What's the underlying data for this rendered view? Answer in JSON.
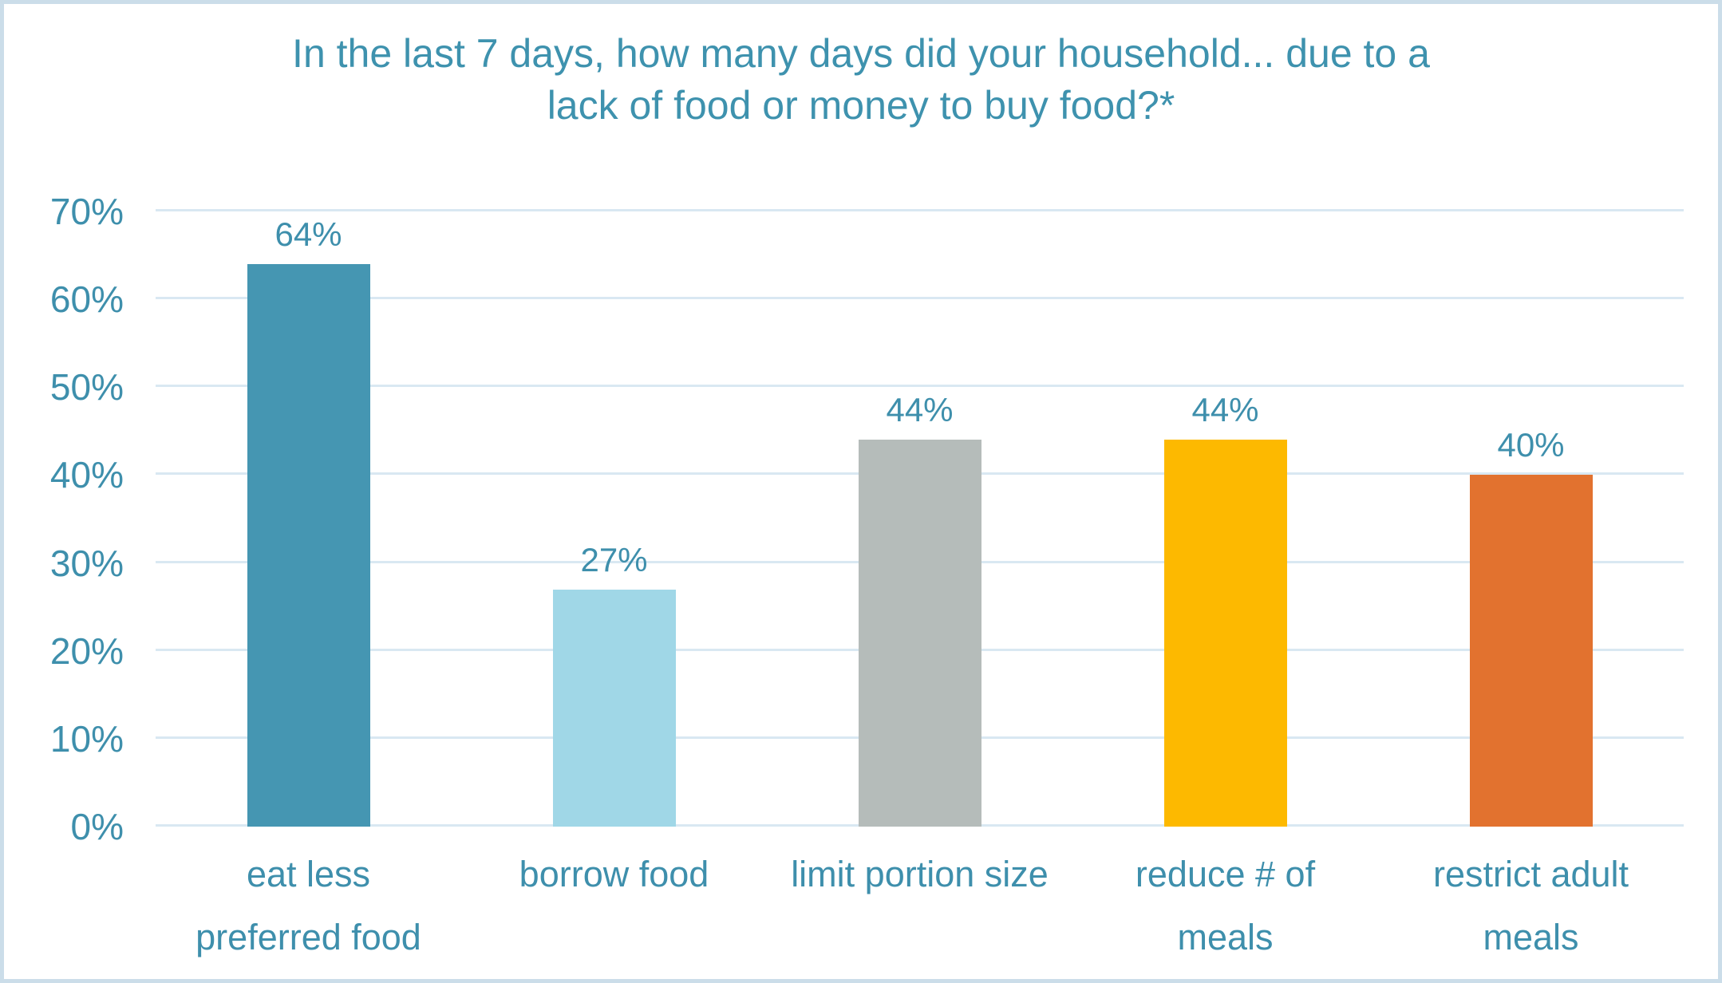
{
  "chart_data": {
    "type": "bar",
    "title": "In the last 7 days, how many days did your household... due to a lack of food or money to buy food?*",
    "title_lines": [
      "In the last 7 days, how many days did your household... due to a",
      "lack of food or money to buy food?*"
    ],
    "categories": [
      "eat less preferred food",
      "borrow food",
      "limit portion size",
      "reduce # of meals",
      "restrict adult meals"
    ],
    "category_lines": [
      [
        "eat less",
        "preferred food"
      ],
      [
        "borrow food"
      ],
      [
        "limit portion size"
      ],
      [
        "reduce # of",
        "meals"
      ],
      [
        "restrict adult",
        "meals"
      ]
    ],
    "values": [
      64,
      27,
      44,
      44,
      40
    ],
    "data_labels": [
      "64%",
      "27%",
      "44%",
      "44%",
      "40%"
    ],
    "bar_colors": [
      "#4596b2",
      "#a0d7e7",
      "#b5bcba",
      "#fdb900",
      "#e2722f"
    ],
    "xlabel": "",
    "ylabel": "",
    "ylim": [
      0,
      70
    ],
    "yticks": [
      "0%",
      "10%",
      "20%",
      "30%",
      "40%",
      "50%",
      "60%",
      "70%"
    ],
    "ytick_values": [
      0,
      10,
      20,
      30,
      40,
      50,
      60,
      70
    ],
    "grid": true,
    "legend": false
  },
  "colors": {
    "title_text": "#3e92ae",
    "axis_text": "#3e8fac",
    "gridline": "#d9e8f2",
    "frame_border": "#cbdde9",
    "background": "#ffffff"
  }
}
